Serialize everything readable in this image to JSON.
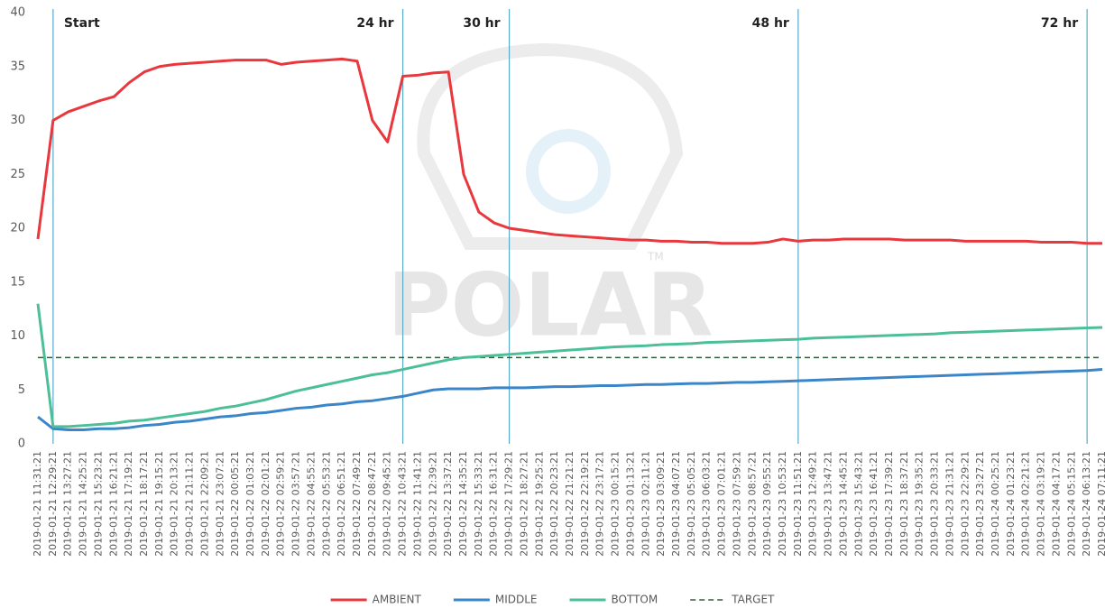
{
  "chart_data": {
    "type": "line",
    "categories": [
      "2019-01-21 11:31:21",
      "2019-01-21 12:29:21",
      "2019-01-21 13:27:21",
      "2019-01-21 14:25:21",
      "2019-01-21 15:23:21",
      "2019-01-21 16:21:21",
      "2019-01-21 17:19:21",
      "2019-01-21 18:17:21",
      "2019-01-21 19:15:21",
      "2019-01-21 20:13:21",
      "2019-01-21 21:11:21",
      "2019-01-21 22:09:21",
      "2019-01-21 23:07:21",
      "2019-01-22 00:05:21",
      "2019-01-22 01:03:21",
      "2019-01-22 02:01:21",
      "2019-01-22 02:59:21",
      "2019-01-22 03:57:21",
      "2019-01-22 04:55:21",
      "2019-01-22 05:53:21",
      "2019-01-22 06:51:21",
      "2019-01-22 07:49:21",
      "2019-01-22 08:47:21",
      "2019-01-22 09:45:21",
      "2019-01-22 10:43:21",
      "2019-01-22 11:41:21",
      "2019-01-22 12:39:21",
      "2019-01-22 13:37:21",
      "2019-01-22 14:35:21",
      "2019-01-22 15:33:21",
      "2019-01-22 16:31:21",
      "2019-01-22 17:29:21",
      "2019-01-22 18:27:21",
      "2019-01-22 19:25:21",
      "2019-01-22 20:23:21",
      "2019-01-22 21:21:21",
      "2019-01-22 22:19:21",
      "2019-01-22 23:17:21",
      "2019-01-23 00:15:21",
      "2019-01-23 01:13:21",
      "2019-01-23 02:11:21",
      "2019-01-23 03:09:21",
      "2019-01-23 04:07:21",
      "2019-01-23 05:05:21",
      "2019-01-23 06:03:21",
      "2019-01-23 07:01:21",
      "2019-01-23 07:59:21",
      "2019-01-23 08:57:21",
      "2019-01-23 09:55:21",
      "2019-01-23 10:53:21",
      "2019-01-23 11:51:21",
      "2019-01-23 12:49:21",
      "2019-01-23 13:47:21",
      "2019-01-23 14:45:21",
      "2019-01-23 15:43:21",
      "2019-01-23 16:41:21",
      "2019-01-23 17:39:21",
      "2019-01-23 18:37:21",
      "2019-01-23 19:35:21",
      "2019-01-23 20:33:21",
      "2019-01-23 21:31:21",
      "2019-01-23 22:29:21",
      "2019-01-23 23:27:21",
      "2019-01-24 00:25:21",
      "2019-01-24 01:23:21",
      "2019-01-24 02:21:21",
      "2019-01-24 03:19:21",
      "2019-01-24 04:17:21",
      "2019-01-24 05:15:21",
      "2019-01-24 06:13:21",
      "2019-01-24 07:11:21"
    ],
    "series": [
      {
        "name": "AMBIENT",
        "color": "#e8383d",
        "values": [
          19,
          30,
          30.8,
          31.3,
          31.8,
          32.2,
          33.5,
          34.5,
          35,
          35.2,
          35.3,
          35.4,
          35.5,
          35.6,
          35.6,
          35.6,
          35.2,
          35.4,
          35.5,
          35.6,
          35.7,
          35.5,
          30,
          28,
          34.1,
          34.2,
          34.4,
          34.5,
          25,
          21.5,
          20.5,
          20,
          19.8,
          19.6,
          19.4,
          19.3,
          19.2,
          19.1,
          19,
          18.9,
          18.9,
          18.8,
          18.8,
          18.7,
          18.7,
          18.6,
          18.6,
          18.6,
          18.7,
          19,
          18.8,
          18.9,
          18.9,
          19,
          19,
          19,
          19,
          18.9,
          18.9,
          18.9,
          18.9,
          18.8,
          18.8,
          18.8,
          18.8,
          18.8,
          18.7,
          18.7,
          18.7,
          18.6,
          18.6
        ]
      },
      {
        "name": "MIDDLE",
        "color": "#3a86c8",
        "values": [
          2.5,
          1.4,
          1.3,
          1.3,
          1.4,
          1.4,
          1.5,
          1.7,
          1.8,
          2,
          2.1,
          2.3,
          2.5,
          2.6,
          2.8,
          2.9,
          3.1,
          3.3,
          3.4,
          3.6,
          3.7,
          3.9,
          4,
          4.2,
          4.4,
          4.7,
          5,
          5.1,
          5.1,
          5.1,
          5.2,
          5.2,
          5.2,
          5.25,
          5.3,
          5.3,
          5.35,
          5.4,
          5.4,
          5.45,
          5.5,
          5.5,
          5.55,
          5.6,
          5.6,
          5.65,
          5.7,
          5.7,
          5.75,
          5.8,
          5.85,
          5.9,
          5.95,
          6,
          6.05,
          6.1,
          6.15,
          6.2,
          6.25,
          6.3,
          6.35,
          6.4,
          6.45,
          6.5,
          6.55,
          6.6,
          6.65,
          6.7,
          6.75,
          6.8,
          6.9
        ]
      },
      {
        "name": "BOTTOM",
        "color": "#4dbf98",
        "values": [
          13,
          1.6,
          1.6,
          1.7,
          1.8,
          1.9,
          2.1,
          2.2,
          2.4,
          2.6,
          2.8,
          3,
          3.3,
          3.5,
          3.8,
          4.1,
          4.5,
          4.9,
          5.2,
          5.5,
          5.8,
          6.1,
          6.4,
          6.6,
          6.9,
          7.2,
          7.5,
          7.8,
          8,
          8.1,
          8.2,
          8.3,
          8.4,
          8.5,
          8.6,
          8.7,
          8.8,
          8.9,
          9,
          9.05,
          9.1,
          9.2,
          9.25,
          9.3,
          9.4,
          9.45,
          9.5,
          9.55,
          9.6,
          9.65,
          9.7,
          9.8,
          9.85,
          9.9,
          9.95,
          10,
          10.05,
          10.1,
          10.15,
          10.2,
          10.3,
          10.35,
          10.4,
          10.45,
          10.5,
          10.55,
          10.6,
          10.65,
          10.7,
          10.75,
          10.8
        ]
      }
    ],
    "reference_line": {
      "name": "TARGET",
      "value": 8,
      "color": "#2e5e3a",
      "dashed": true
    },
    "annotations": [
      {
        "label": "Start",
        "x": "2019-01-21 12:29:21",
        "side": "right"
      },
      {
        "label": "24 hr",
        "x": "2019-01-22 10:43:21",
        "side": "left"
      },
      {
        "label": "30 hr",
        "x": "2019-01-22 17:29:21",
        "side": "left"
      },
      {
        "label": "48 hr",
        "x": "2019-01-23 11:51:21",
        "side": "left"
      },
      {
        "label": "72 hr",
        "x": "2019-01-24 06:13:21",
        "side": "left"
      }
    ],
    "annotation_color": "#5aaac8",
    "watermark": {
      "text": "POLAR",
      "mark": "TM"
    },
    "ylim": [
      0,
      40
    ],
    "yticks": [
      0,
      5,
      10,
      15,
      20,
      25,
      30,
      35,
      40
    ],
    "legend": "bottom"
  }
}
